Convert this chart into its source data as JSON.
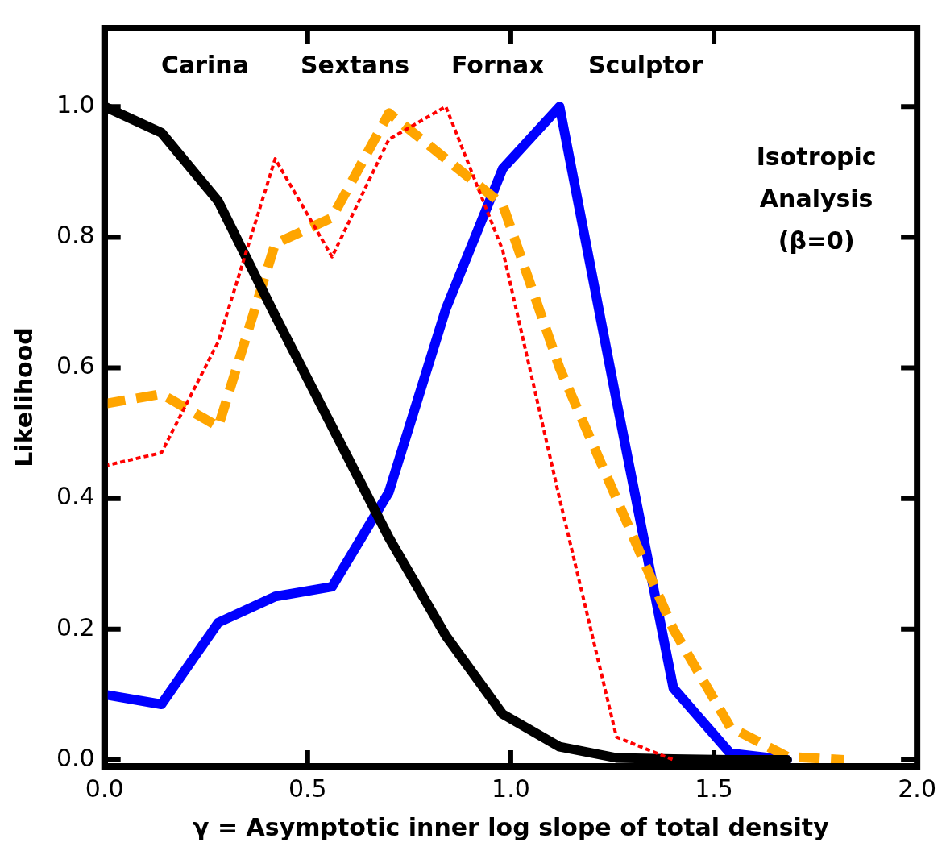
{
  "chart_data": {
    "type": "line",
    "xlabel": "γ = Asymptotic inner log slope of total density",
    "ylabel": "Likelihood",
    "xlim": [
      0,
      2
    ],
    "ylim": [
      -0.01,
      1.12
    ],
    "xticks": [
      {
        "value": 0,
        "label": "0.0"
      },
      0.5,
      {
        "value": 1,
        "label": "1.0"
      },
      1.5,
      {
        "value": 2,
        "label": "2.0"
      }
    ],
    "yticks": [
      {
        "value": 0,
        "label": "0.0"
      },
      0.2,
      0.4,
      0.6,
      0.8,
      {
        "value": 1,
        "label": "1.0"
      }
    ],
    "grid": false,
    "marker": "none",
    "series": [
      {
        "color": "#000000",
        "line_style": "solid",
        "x": [
          0,
          0.14,
          0.28,
          0.42,
          0.56,
          0.7,
          0.84,
          0.98,
          1.12,
          1.26,
          1.4,
          1.54,
          1.68
        ],
        "values": [
          1.0,
          0.96,
          0.855,
          0.68,
          0.51,
          0.34,
          0.19,
          0.07,
          0.02,
          0.003,
          0.001,
          0,
          0
        ]
      },
      {
        "color": "#ff0000",
        "line_style": "dotted",
        "x": [
          0,
          0.14,
          0.28,
          0.42,
          0.56,
          0.7,
          0.84,
          0.98,
          1.12,
          1.26,
          1.4
        ],
        "values": [
          0.45,
          0.47,
          0.64,
          0.92,
          0.77,
          0.95,
          1.0,
          0.78,
          0.4,
          0.035,
          0
        ]
      },
      {
        "color": "#ffa500",
        "line_style": "dashed",
        "x": [
          0,
          0.14,
          0.28,
          0.42,
          0.56,
          0.7,
          0.84,
          0.98,
          1.12,
          1.26,
          1.4,
          1.54,
          1.68,
          1.82
        ],
        "values": [
          0.545,
          0.56,
          0.51,
          0.79,
          0.83,
          0.99,
          0.92,
          0.85,
          0.6,
          0.4,
          0.2,
          0.05,
          0.005,
          0
        ]
      },
      {
        "color": "#0000ff",
        "line_style": "solid",
        "x": [
          0,
          0.14,
          0.28,
          0.42,
          0.56,
          0.7,
          0.84,
          0.98,
          1.12,
          1.26,
          1.4,
          1.54,
          1.68
        ],
        "values": [
          0.1,
          0.085,
          0.21,
          0.25,
          0.265,
          0.41,
          0.69,
          0.905,
          1.0,
          0.55,
          0.11,
          0.01,
          0
        ]
      }
    ],
    "annotations": [
      "Carina",
      "Sextans",
      "Fornax",
      "Sculptor",
      "Isotropic\nAnalysis\n(β=0)"
    ]
  }
}
